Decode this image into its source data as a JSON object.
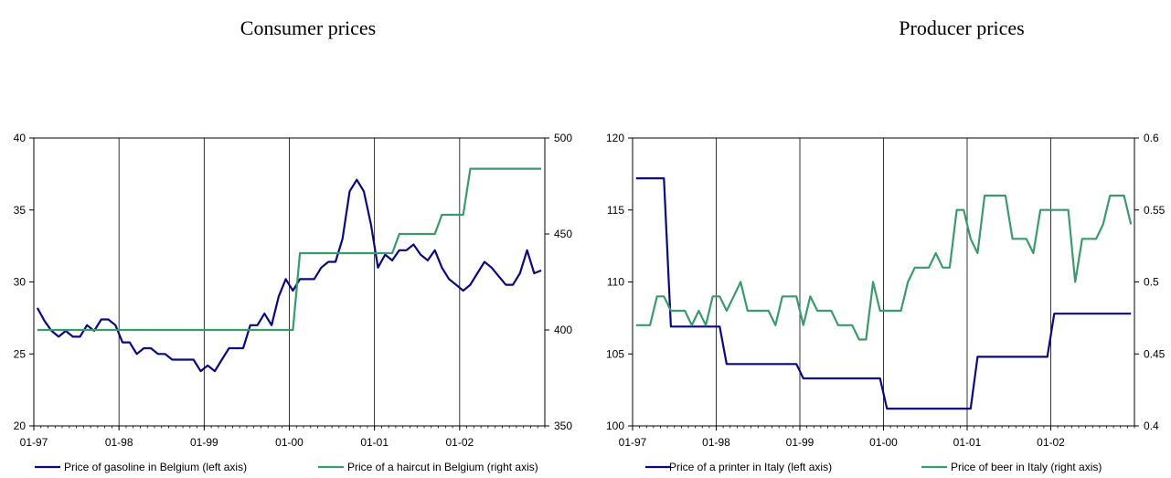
{
  "panels": {
    "left_title": "Consumer prices",
    "right_title": "Producer prices"
  },
  "colors": {
    "navy": "#0a0a7a",
    "green": "#3a9a6a",
    "axis": "#000000"
  },
  "chart_data": [
    {
      "type": "line",
      "title": "Consumer prices",
      "x_tick_labels": [
        "01-97",
        "01-98",
        "01-99",
        "01-00",
        "01-01",
        "01-02"
      ],
      "x_months": 72,
      "grid": "vertical lines at each year",
      "legend_placement": "bottom",
      "y_left": {
        "range": [
          20,
          40
        ],
        "ticks": [
          20,
          25,
          30,
          35,
          40
        ]
      },
      "y_right": {
        "range": [
          350,
          500
        ],
        "ticks": [
          350,
          400,
          450,
          500
        ]
      },
      "series": [
        {
          "name": "Price of gasoline in Belgium (left axis)",
          "axis": "left",
          "color": "#0a0a7a",
          "values": [
            28.2,
            27.3,
            26.6,
            26.2,
            26.6,
            26.2,
            26.2,
            27.0,
            26.6,
            27.4,
            27.4,
            27.0,
            25.8,
            25.8,
            25.0,
            25.4,
            25.4,
            25.0,
            25.0,
            24.6,
            24.6,
            24.6,
            24.6,
            23.8,
            24.2,
            23.8,
            24.6,
            25.4,
            25.4,
            25.4,
            27.0,
            27.0,
            27.8,
            27.0,
            29.0,
            30.2,
            29.4,
            30.2,
            30.2,
            30.2,
            31.0,
            31.4,
            31.4,
            33.0,
            36.3,
            37.1,
            36.3,
            34.0,
            31.0,
            31.9,
            31.5,
            32.2,
            32.2,
            32.6,
            31.9,
            31.5,
            32.2,
            31.0,
            30.2,
            29.8,
            29.4,
            29.8,
            30.6,
            31.4,
            31.0,
            30.4,
            29.8,
            29.8,
            30.6,
            32.2,
            30.6,
            30.8
          ]
        },
        {
          "name": "Price of a haircut in Belgium (right axis)",
          "axis": "right",
          "color": "#3a9a6a",
          "values": [
            400,
            400,
            400,
            400,
            400,
            400,
            400,
            400,
            400,
            400,
            400,
            400,
            400,
            400,
            400,
            400,
            400,
            400,
            400,
            400,
            400,
            400,
            400,
            400,
            400,
            400,
            400,
            400,
            400,
            400,
            400,
            400,
            400,
            400,
            400,
            400,
            400,
            440,
            440,
            440,
            440,
            440,
            440,
            440,
            440,
            440,
            440,
            440,
            440,
            440,
            440,
            450,
            450,
            450,
            450,
            450,
            450,
            460,
            460,
            460,
            460,
            484,
            484,
            484,
            484,
            484,
            484,
            484,
            484,
            484,
            484,
            484
          ]
        }
      ]
    },
    {
      "type": "line",
      "title": "Producer prices",
      "x_tick_labels": [
        "01-97",
        "01-98",
        "01-99",
        "01-00",
        "01-01",
        "01-02"
      ],
      "x_months": 72,
      "grid": "vertical lines at each year",
      "legend_placement": "bottom",
      "y_left": {
        "range": [
          100,
          120
        ],
        "ticks": [
          100,
          105,
          110,
          115,
          120
        ]
      },
      "y_right": {
        "range": [
          0.4,
          0.6
        ],
        "ticks": [
          0.4,
          0.45,
          0.5,
          0.55,
          0.6
        ]
      },
      "series": [
        {
          "name": "Price of a printer in Italy (left axis)",
          "axis": "left",
          "color": "#0a0a7a",
          "values": [
            117.2,
            117.2,
            117.2,
            117.2,
            117.2,
            106.9,
            106.9,
            106.9,
            106.9,
            106.9,
            106.9,
            106.9,
            106.9,
            104.3,
            104.3,
            104.3,
            104.3,
            104.3,
            104.3,
            104.3,
            104.3,
            104.3,
            104.3,
            104.3,
            103.3,
            103.3,
            103.3,
            103.3,
            103.3,
            103.3,
            103.3,
            103.3,
            103.3,
            103.3,
            103.3,
            103.3,
            101.2,
            101.2,
            101.2,
            101.2,
            101.2,
            101.2,
            101.2,
            101.2,
            101.2,
            101.2,
            101.2,
            101.2,
            101.2,
            104.8,
            104.8,
            104.8,
            104.8,
            104.8,
            104.8,
            104.8,
            104.8,
            104.8,
            104.8,
            104.8,
            107.8,
            107.8,
            107.8,
            107.8,
            107.8,
            107.8,
            107.8,
            107.8,
            107.8,
            107.8,
            107.8,
            107.8
          ]
        },
        {
          "name": "Price of beer in Italy (right axis)",
          "axis": "right",
          "color": "#3a9a6a",
          "values": [
            0.47,
            0.47,
            0.47,
            0.49,
            0.49,
            0.48,
            0.48,
            0.48,
            0.47,
            0.48,
            0.47,
            0.49,
            0.49,
            0.48,
            0.49,
            0.5,
            0.48,
            0.48,
            0.48,
            0.48,
            0.47,
            0.49,
            0.49,
            0.49,
            0.47,
            0.49,
            0.48,
            0.48,
            0.48,
            0.47,
            0.47,
            0.47,
            0.46,
            0.46,
            0.5,
            0.48,
            0.48,
            0.48,
            0.48,
            0.5,
            0.51,
            0.51,
            0.51,
            0.52,
            0.51,
            0.51,
            0.55,
            0.55,
            0.53,
            0.52,
            0.56,
            0.56,
            0.56,
            0.56,
            0.53,
            0.53,
            0.53,
            0.52,
            0.55,
            0.55,
            0.55,
            0.55,
            0.55,
            0.5,
            0.53,
            0.53,
            0.53,
            0.54,
            0.56,
            0.56,
            0.56,
            0.54
          ]
        }
      ]
    }
  ]
}
